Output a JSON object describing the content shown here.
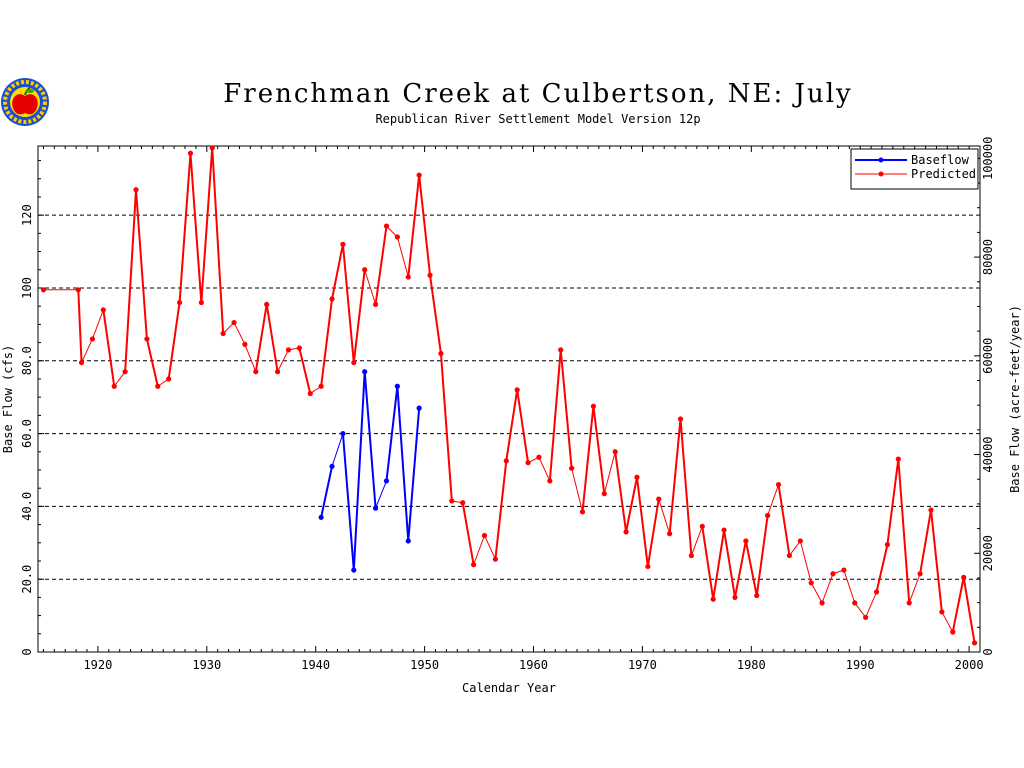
{
  "chart_data": {
    "type": "line",
    "title": "Frenchman Creek at Culbertson, NE: July",
    "subtitle": "Republican River Settlement Model Version 12p",
    "xlabel": "Calendar Year",
    "ylabel": "Base Flow (cfs)",
    "ylabel_right": "Base Flow (acre-feet/year)",
    "xlim": [
      1914.5,
      2001
    ],
    "ylim": [
      0,
      139
    ],
    "y2lim": [
      0,
      102500
    ],
    "x_ticks": [
      1920,
      1930,
      1940,
      1950,
      1960,
      1970,
      1980,
      1990,
      2000
    ],
    "x_tick_labels": [
      "1920",
      "1930",
      "1940",
      "1950",
      "1960",
      "1970",
      "1980",
      "1990",
      "2000"
    ],
    "y_ticks": [
      0,
      20,
      40,
      60,
      80,
      100,
      120
    ],
    "y_tick_labels": [
      "0",
      "20.0",
      "40.0",
      "60.0",
      "80.0",
      "100",
      "120"
    ],
    "y2_ticks": [
      0,
      20000,
      40000,
      60000,
      80000,
      100000
    ],
    "y2_tick_labels": [
      "0",
      "20000",
      "40000",
      "60000",
      "80000",
      "100000"
    ],
    "grid": "horizontal dashed",
    "legend_position": "top-right",
    "series": [
      {
        "name": "Baseflow",
        "color": "#0000ff",
        "x": [
          1940.5,
          1941.5,
          1942.5,
          1943.5,
          1944.5,
          1945.5,
          1946.5,
          1947.5,
          1948.5,
          1949.5
        ],
        "values": [
          37,
          51,
          60,
          22.5,
          77,
          39.5,
          47,
          73,
          30.5,
          67
        ]
      },
      {
        "name": "Predicted",
        "color": "#ff0000",
        "x": [
          1915,
          1918.2,
          1918.5,
          1919.5,
          1920.5,
          1921.5,
          1922.5,
          1923.5,
          1924.5,
          1925.5,
          1926.5,
          1927.5,
          1928.5,
          1929.5,
          1930.5,
          1931.5,
          1932.5,
          1933.5,
          1934.5,
          1935.5,
          1936.5,
          1937.5,
          1938.5,
          1939.5,
          1940.5,
          1941.5,
          1942.5,
          1943.5,
          1944.5,
          1945.5,
          1946.5,
          1947.5,
          1948.5,
          1949.5,
          1950.5,
          1951.5,
          1952.5,
          1953.5,
          1954.5,
          1955.5,
          1956.5,
          1957.5,
          1958.5,
          1959.5,
          1960.5,
          1961.5,
          1962.5,
          1963.5,
          1964.5,
          1965.5,
          1966.5,
          1967.5,
          1968.5,
          1969.5,
          1970.5,
          1971.5,
          1972.5,
          1973.5,
          1974.5,
          1975.5,
          1976.5,
          1977.5,
          1978.5,
          1979.5,
          1980.5,
          1981.5,
          1982.5,
          1983.5,
          1984.5,
          1985.5,
          1986.5,
          1987.5,
          1988.5,
          1989.5,
          1990.5,
          1991.5,
          1992.5,
          1993.5,
          1994.5,
          1995.5,
          1996.5,
          1997.5,
          1998.5,
          1999.5,
          2000.5
        ],
        "values": [
          99.5,
          99.5,
          79.5,
          86,
          94,
          73,
          77,
          127,
          86,
          73,
          75,
          96,
          137,
          96,
          138.5,
          87.5,
          90.5,
          84.5,
          77,
          95.5,
          77,
          83,
          83.5,
          71,
          73,
          97,
          112,
          79.5,
          105,
          95.5,
          117,
          114,
          103,
          131,
          103.5,
          82,
          41.5,
          41,
          24,
          32,
          25.5,
          52.5,
          72,
          52,
          53.5,
          47,
          83,
          50.5,
          38.5,
          67.5,
          43.5,
          55,
          33,
          48,
          23.5,
          42,
          32.5,
          64,
          26.5,
          34.5,
          14.5,
          33.5,
          15,
          30.5,
          15.5,
          37.5,
          46,
          26.5,
          30.5,
          19,
          13.5,
          21.5,
          22.5,
          13.5,
          9.5,
          16.5,
          29.5,
          53,
          13.5,
          21.5,
          39,
          11,
          5.5,
          20.5,
          2.5
        ]
      }
    ]
  },
  "logo": {
    "name": "apple-logo"
  }
}
